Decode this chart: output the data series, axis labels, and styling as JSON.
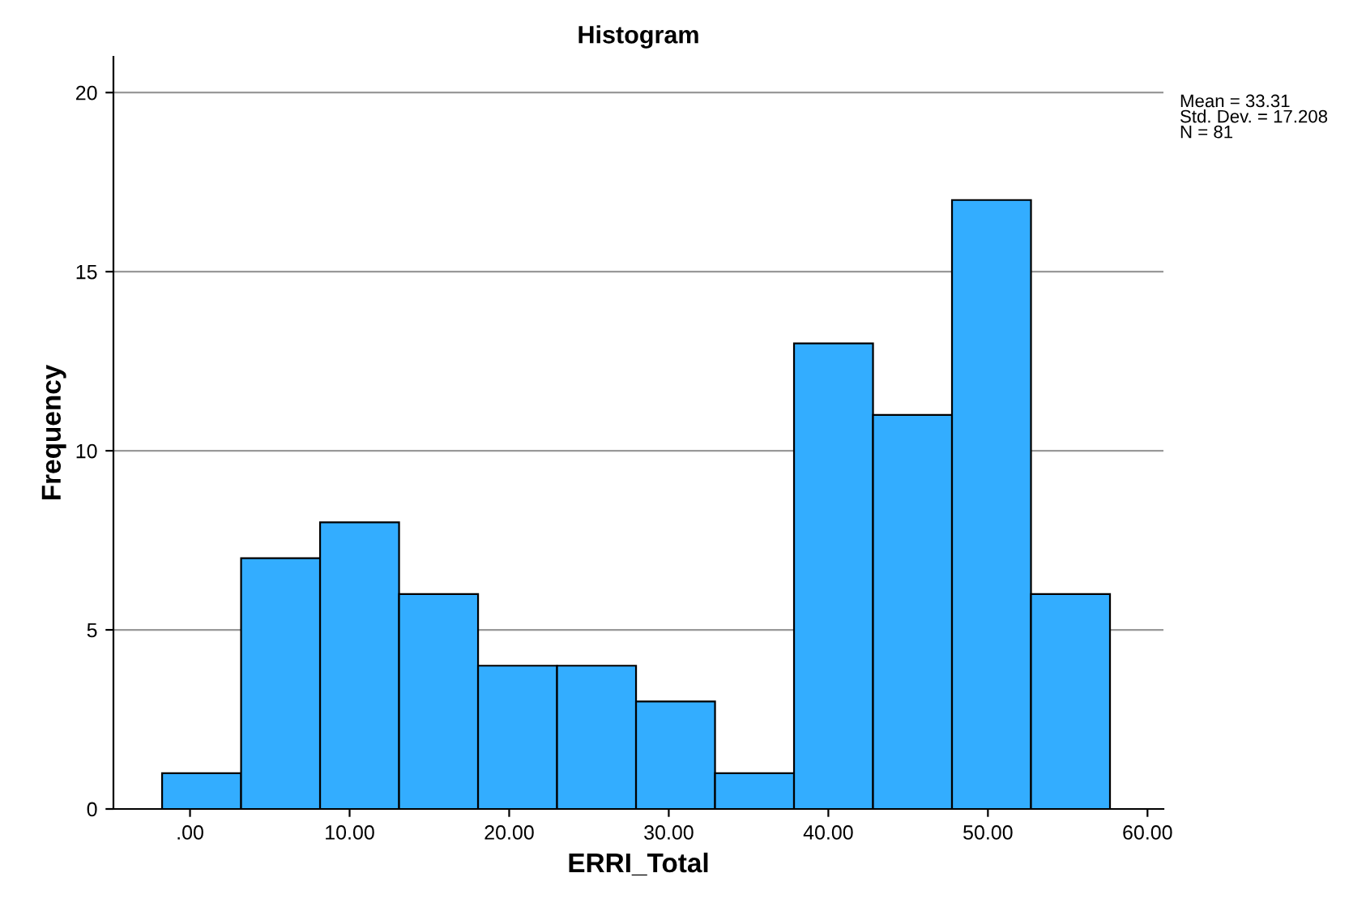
{
  "chart_data": {
    "type": "histogram",
    "title": "Histogram",
    "xlabel": "ERRI_Total",
    "ylabel": "Frequency",
    "bins": [
      -1.75,
      3.2,
      8.15,
      13.1,
      18.05,
      23.0,
      27.95,
      32.9,
      37.85,
      42.8,
      47.75,
      52.7,
      57.65
    ],
    "values": [
      1,
      7,
      8,
      6,
      4,
      4,
      3,
      1,
      13,
      11,
      17,
      6
    ],
    "color": "#33adff",
    "xlim": [
      -4.8,
      61
    ],
    "ylim": [
      0,
      21
    ],
    "xticks": [
      {
        "value": 0,
        "label": ".00"
      },
      {
        "value": 10,
        "label": "10.00"
      },
      {
        "value": 20,
        "label": "20.00"
      },
      {
        "value": 30,
        "label": "30.00"
      },
      {
        "value": 40,
        "label": "40.00"
      },
      {
        "value": 50,
        "label": "50.00"
      },
      {
        "value": 60,
        "label": "60.00"
      }
    ],
    "yticks": [
      0,
      5,
      10,
      15,
      20
    ],
    "grid": "y",
    "annotations": [
      "Mean = 33.31\nStd. Dev. = 17.208\nN = 81"
    ]
  }
}
